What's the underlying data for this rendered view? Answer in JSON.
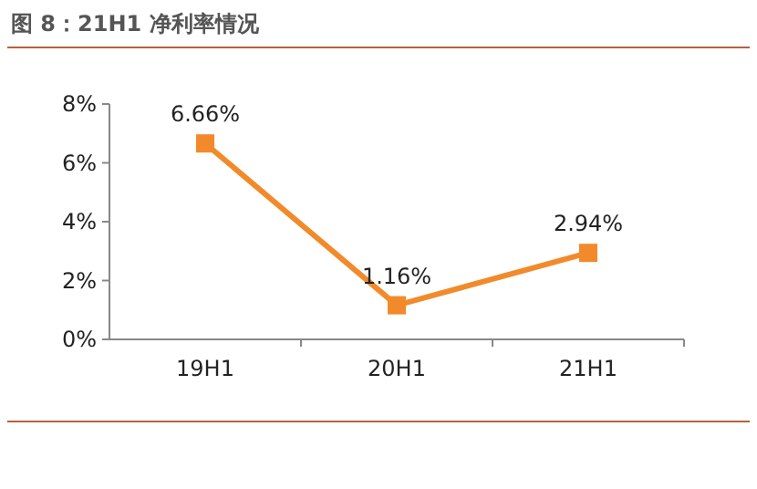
{
  "chart_data": {
    "type": "line",
    "title": "图 8：21H1 净利率情况",
    "categories": [
      "19H1",
      "20H1",
      "21H1"
    ],
    "series": [
      {
        "color": "#f28a2b",
        "values": [
          6.66,
          1.16,
          2.94
        ],
        "value_labels": [
          "6.66%",
          "1.16%",
          "2.94%"
        ]
      }
    ],
    "ylim": [
      0,
      8
    ],
    "yticks": [
      {
        "value": 0,
        "label": "0%"
      },
      {
        "value": 2,
        "label": "2%"
      },
      {
        "value": 4,
        "label": "4%"
      },
      {
        "value": 6,
        "label": "6%"
      },
      {
        "value": 8,
        "label": "8%"
      }
    ],
    "grid": false,
    "marker": "square",
    "line_style": "solid"
  }
}
